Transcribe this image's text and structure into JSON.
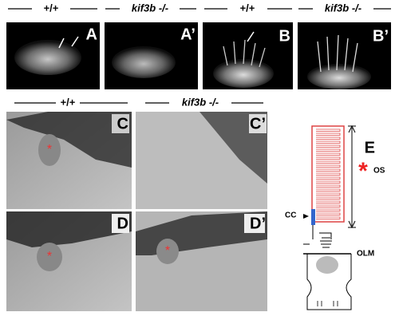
{
  "row1_headers": [
    "+/+",
    "kif3b -/-",
    "+/+",
    "kif3b -/-"
  ],
  "row1_panels": [
    "A",
    "A’",
    "B",
    "B’"
  ],
  "row2_headers": [
    "+/+",
    "kif3b -/-"
  ],
  "row2_panels": [
    "C",
    "C’",
    "D",
    "D’"
  ],
  "diagram": {
    "panel": "E",
    "labels": {
      "os": "OS",
      "cc": "CC",
      "olm": "OLM"
    }
  }
}
